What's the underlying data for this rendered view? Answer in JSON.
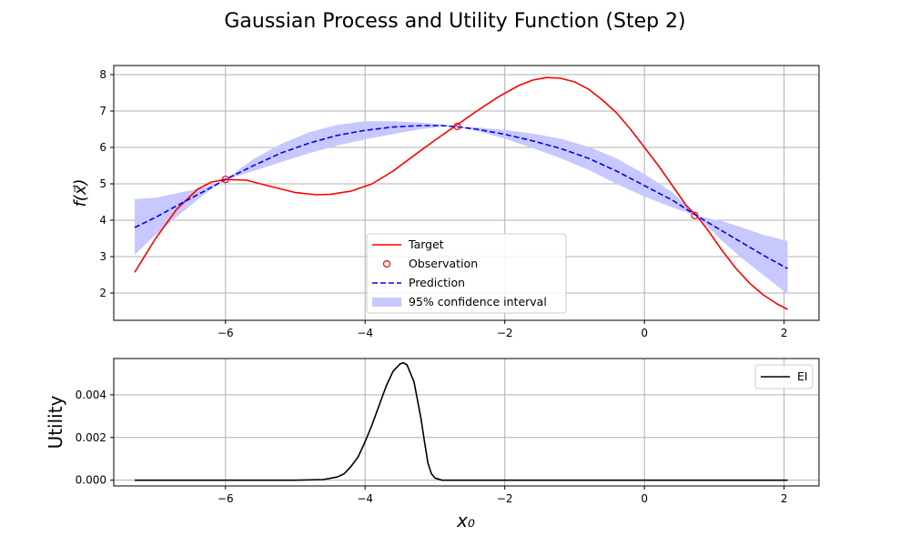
{
  "figure": {
    "title": "Gaussian Process and Utility Function (Step 2)"
  },
  "chart_data": [
    {
      "type": "line",
      "ylabel": "f(x⃗)",
      "xlim": [
        -7.6,
        2.5
      ],
      "ylim": [
        1.25,
        8.25
      ],
      "grid": true,
      "legend_position": "lower center",
      "xticks": [
        -6,
        -4,
        -2,
        0,
        2
      ],
      "xtick_labels": [
        "−6",
        "−4",
        "−2",
        "0",
        "2"
      ],
      "yticks": [
        2,
        3,
        4,
        5,
        6,
        7,
        8
      ],
      "ytick_labels": [
        "2",
        "3",
        "4",
        "5",
        "6",
        "7",
        "8"
      ],
      "legend": [
        {
          "label": "Target",
          "color": "#ff0000",
          "style": "solid"
        },
        {
          "label": "Observation",
          "color": "#ff0000",
          "style": "marker"
        },
        {
          "label": "Prediction",
          "color": "#0000ff",
          "style": "dashed"
        },
        {
          "label": "95% confidence interval",
          "color": "#c8c8ff",
          "style": "fill"
        }
      ],
      "series": [
        {
          "name": "Target",
          "color": "#ff0000",
          "x": [
            -7.3,
            -7.0,
            -6.7,
            -6.4,
            -6.2,
            -6.0,
            -5.7,
            -5.4,
            -5.0,
            -4.7,
            -4.5,
            -4.2,
            -3.9,
            -3.6,
            -3.3,
            -3.0,
            -2.7,
            -2.4,
            -2.1,
            -1.8,
            -1.6,
            -1.4,
            -1.2,
            -1.0,
            -0.8,
            -0.6,
            -0.4,
            -0.2,
            0.0,
            0.2,
            0.4,
            0.6,
            0.75,
            0.9,
            1.1,
            1.3,
            1.5,
            1.7,
            1.9,
            2.05
          ],
          "y": [
            2.57,
            3.5,
            4.3,
            4.85,
            5.05,
            5.12,
            5.1,
            4.95,
            4.76,
            4.7,
            4.71,
            4.8,
            5.0,
            5.35,
            5.78,
            6.2,
            6.6,
            7.0,
            7.38,
            7.7,
            7.85,
            7.92,
            7.9,
            7.8,
            7.6,
            7.3,
            6.95,
            6.5,
            6.0,
            5.5,
            4.95,
            4.4,
            4.12,
            3.75,
            3.2,
            2.7,
            2.28,
            1.95,
            1.7,
            1.55
          ]
        },
        {
          "name": "Prediction",
          "color": "#0000ff",
          "x": [
            -7.3,
            -7.0,
            -6.6,
            -6.3,
            -6.0,
            -5.6,
            -5.2,
            -4.8,
            -4.4,
            -4.0,
            -3.6,
            -3.2,
            -2.9,
            -2.7,
            -2.4,
            -2.0,
            -1.6,
            -1.2,
            -0.8,
            -0.4,
            0.0,
            0.4,
            0.75,
            1.1,
            1.4,
            1.7,
            2.05
          ],
          "y": [
            3.8,
            4.08,
            4.5,
            4.8,
            5.12,
            5.5,
            5.85,
            6.12,
            6.33,
            6.47,
            6.56,
            6.6,
            6.6,
            6.57,
            6.5,
            6.36,
            6.18,
            5.97,
            5.7,
            5.35,
            4.95,
            4.55,
            4.12,
            3.72,
            3.38,
            3.04,
            2.67
          ]
        }
      ],
      "confidence_interval": {
        "name": "95% confidence interval",
        "color": "#c8c8ff",
        "x": [
          -7.3,
          -7.0,
          -6.6,
          -6.3,
          -6.0,
          -5.6,
          -5.2,
          -4.8,
          -4.4,
          -4.0,
          -3.6,
          -3.2,
          -2.9,
          -2.7,
          -2.4,
          -2.0,
          -1.6,
          -1.2,
          -0.8,
          -0.4,
          0.0,
          0.4,
          0.75,
          1.1,
          1.4,
          1.7,
          2.05
        ],
        "lower": [
          3.05,
          3.6,
          4.25,
          4.72,
          5.12,
          5.35,
          5.6,
          5.84,
          6.05,
          6.22,
          6.37,
          6.5,
          6.57,
          6.57,
          6.45,
          6.24,
          5.98,
          5.7,
          5.38,
          5.0,
          4.65,
          4.35,
          4.12,
          3.45,
          2.95,
          2.5,
          1.97
        ],
        "upper": [
          4.58,
          4.62,
          4.78,
          4.9,
          5.12,
          5.68,
          6.1,
          6.42,
          6.62,
          6.72,
          6.72,
          6.68,
          6.63,
          6.57,
          6.55,
          6.48,
          6.38,
          6.24,
          6.02,
          5.7,
          5.27,
          4.77,
          4.12,
          3.98,
          3.8,
          3.6,
          3.43
        ]
      },
      "observations": {
        "name": "Observation",
        "color": "#ff0000",
        "x": [
          -6.0,
          -2.68,
          0.72
        ],
        "y": [
          5.12,
          6.58,
          4.13
        ]
      }
    },
    {
      "type": "line",
      "xlabel": "x₀",
      "ylabel": "Utility",
      "xlim": [
        -7.6,
        2.5
      ],
      "ylim": [
        -0.00027,
        0.0057
      ],
      "grid": true,
      "legend_position": "upper right",
      "xticks": [
        -6,
        -4,
        -2,
        0,
        2
      ],
      "xtick_labels": [
        "−6",
        "−4",
        "−2",
        "0",
        "2"
      ],
      "yticks": [
        0.0,
        0.002,
        0.004
      ],
      "ytick_labels": [
        "0.000",
        "0.002",
        "0.004"
      ],
      "legend": [
        {
          "label": "EI",
          "color": "#000000",
          "style": "solid"
        }
      ],
      "series": [
        {
          "name": "EI",
          "color": "#000000",
          "x": [
            -7.3,
            -5.0,
            -4.6,
            -4.4,
            -4.3,
            -4.2,
            -4.1,
            -4.0,
            -3.9,
            -3.8,
            -3.7,
            -3.6,
            -3.5,
            -3.45,
            -3.4,
            -3.3,
            -3.2,
            -3.15,
            -3.1,
            -3.05,
            -3.0,
            -2.9,
            2.05
          ],
          "y": [
            0.0,
            0.0,
            3e-05,
            0.00015,
            0.0003,
            0.00065,
            0.0011,
            0.0018,
            0.0026,
            0.0035,
            0.0044,
            0.0051,
            0.00545,
            0.0055,
            0.0054,
            0.0046,
            0.0029,
            0.0018,
            0.0008,
            0.0003,
            0.0001,
            0.0,
            0.0
          ]
        }
      ]
    }
  ]
}
